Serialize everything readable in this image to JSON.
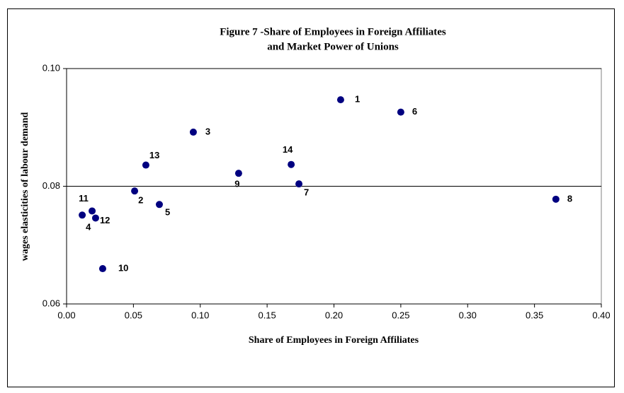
{
  "chart_data": {
    "type": "scatter",
    "title": [
      "Figure 7 -Share of Employees in Foreign Affiliates",
      "and Market Power of Unions"
    ],
    "x_label": "Share of Employees in Foreign Affiliates",
    "y_label": "wages elasticities of labour demand",
    "point_labels": [
      "1",
      "2",
      "3",
      "4",
      "5",
      "6",
      "7",
      "8",
      "9",
      "10",
      "11",
      "12",
      "13",
      "14"
    ],
    "x": [
      0.205,
      0.0509,
      0.0948,
      0.0117,
      0.0694,
      0.25,
      0.1738,
      0.366,
      0.1287,
      0.027,
      0.0191,
      0.0217,
      0.0593,
      0.168
    ],
    "values": [
      0.0947,
      0.0792,
      0.0892,
      0.0751,
      0.0769,
      0.0926,
      0.0804,
      0.0778,
      0.0822,
      0.066,
      0.0758,
      0.0746,
      0.0836,
      0.0837
    ],
    "color": "#000080",
    "xlim": [
      0,
      0.4
    ],
    "xticks": [
      {
        "value": 0,
        "label": "0.00"
      },
      {
        "value": 0.05,
        "label": "0.05"
      },
      {
        "value": 0.1,
        "label": "0.10"
      },
      {
        "value": 0.15,
        "label": "0.15"
      },
      {
        "value": 0.2,
        "label": "0.20"
      },
      {
        "value": 0.25,
        "label": "0.25"
      },
      {
        "value": 0.3,
        "label": "0.30"
      },
      {
        "value": 0.35,
        "label": "0.35"
      },
      {
        "value": 0.4,
        "label": "0.40"
      }
    ],
    "ylim": [
      0.06,
      0.1
    ],
    "yticks": [
      {
        "value": 0.06,
        "label": "0.06"
      },
      {
        "value": 0.08,
        "label": "0.08"
      },
      {
        "value": 0.1,
        "label": "0.10"
      }
    ],
    "grid": true
  }
}
